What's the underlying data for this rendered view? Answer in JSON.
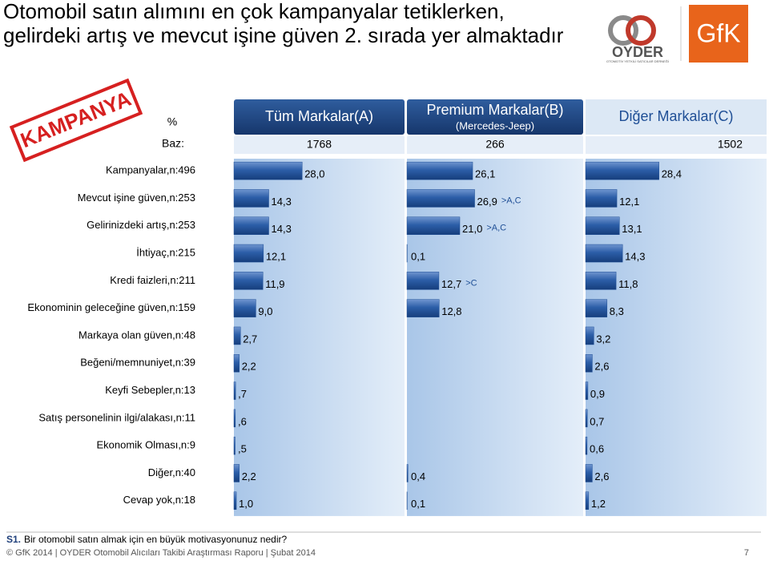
{
  "chart_data": {
    "type": "bar",
    "orientation": "horizontal",
    "title": [
      "Otomobil satın alımını en çok kampanyalar tetiklerken,",
      "gelirdeki artış ve mevcut işine güven 2. sırada yer almaktadır"
    ],
    "stamp": "KAMPANYA",
    "logos": {
      "oyder": "OYDER",
      "oyder_caption": "OTOMOTİV YETKİLİ SATICILAR DERNEĞİ",
      "gfk": "GfK"
    },
    "unit_label": "%",
    "base_label": "Baz:",
    "categories": [
      "Kampanyalar,n:496",
      "Mevcut işine güven,n:253",
      "Gelirinizdeki artış,n:253",
      "İhtiyaç,n:215",
      "Kredi faizleri,n:211",
      "Ekonominin geleceğine güven,n:159",
      "Markaya olan güven,n:48",
      "Beğeni/memnuniyet,n:39",
      "Keyfi Sebepler,n:13",
      "Satış personelinin ilgi/alakası,n:11",
      "Ekonomik Olması,n:9",
      "Diğer,n:40",
      "Cevap yok,n:18"
    ],
    "xlim": [
      0,
      70
    ],
    "series": [
      {
        "name": "Tüm Markalar(A)",
        "base": 1768,
        "color": "#1f4f96",
        "values": [
          28.0,
          14.3,
          14.3,
          12.1,
          11.9,
          9.0,
          2.7,
          2.2,
          0.7,
          0.6,
          0.5,
          2.2,
          1.0
        ],
        "value_labels": [
          "28,0",
          "14,3",
          "14,3",
          "12,1",
          "11,9",
          "9,0",
          "2,7",
          "2,2",
          ",7",
          ",6",
          ",5",
          "2,2",
          "1,0"
        ]
      },
      {
        "name": "Premium Markalar(B)",
        "subtitle": "(Mercedes-Jeep)",
        "base": 266,
        "color": "#1f4f96",
        "values": [
          26.1,
          26.9,
          21.0,
          0.1,
          12.7,
          12.8,
          null,
          null,
          null,
          null,
          null,
          0.4,
          0.1
        ],
        "value_labels": [
          "26,1",
          "26,9",
          "21,0",
          "0,1",
          "12,7",
          "12,8",
          null,
          null,
          null,
          null,
          null,
          "0,4",
          "0,1"
        ],
        "significance": [
          null,
          ">A,C",
          ">A,C",
          null,
          ">C",
          null,
          null,
          null,
          null,
          null,
          null,
          null,
          null
        ]
      },
      {
        "name": "Diğer Markalar(C)",
        "base": 1502,
        "color": "#1f4f96",
        "values": [
          28.4,
          12.1,
          13.1,
          14.3,
          11.8,
          8.3,
          3.2,
          2.6,
          0.9,
          0.7,
          0.6,
          2.6,
          1.2
        ],
        "value_labels": [
          "28,4",
          "12,1",
          "13,1",
          "14,3",
          "11,8",
          "8,3",
          "3,2",
          "2,6",
          "0,9",
          "0,7",
          "0,6",
          "2,6",
          "1,2"
        ]
      }
    ],
    "footer": {
      "question_id": "S1.",
      "question": "Bir otomobil satın almak için en büyük motivasyonunuz nedir?",
      "copyright": "© GfK 2014 | OYDER Otomobil Alıcıları Takibi Araştırması Raporu | Şubat 2014",
      "page": "7"
    }
  }
}
